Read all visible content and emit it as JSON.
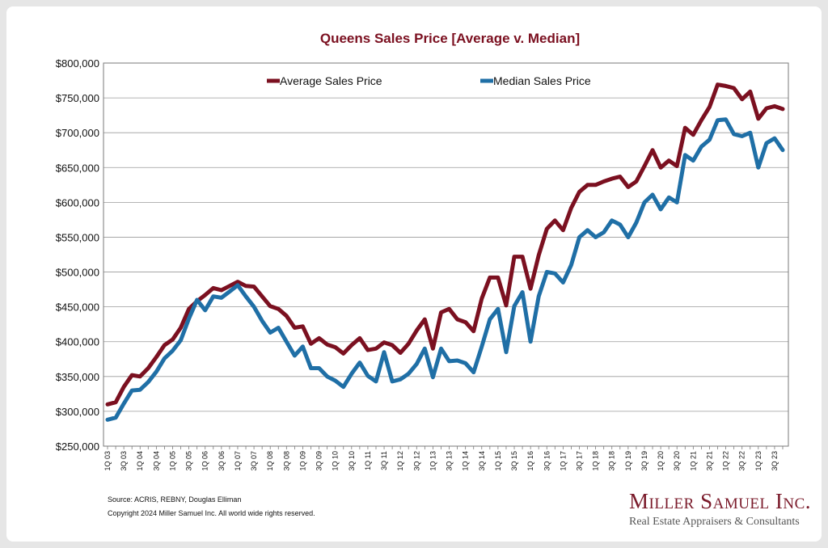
{
  "chart_data": {
    "type": "line",
    "title": "Queens Sales Price [Average v. Median]",
    "xlabel": "",
    "ylabel": "",
    "ylim": [
      250000,
      800000
    ],
    "ytick_labels": [
      "$250,000",
      "$300,000",
      "$350,000",
      "$400,000",
      "$450,000",
      "$500,000",
      "$550,000",
      "$600,000",
      "$650,000",
      "$700,000",
      "$750,000",
      "$800,000"
    ],
    "x_tick_labels": [
      "1Q 03",
      "3Q 03",
      "1Q 04",
      "3Q 04",
      "1Q 05",
      "3Q 05",
      "1Q 06",
      "3Q 06",
      "1Q 07",
      "3Q 07",
      "1Q 08",
      "3Q 08",
      "1Q 09",
      "3Q 09",
      "1Q 10",
      "3Q 10",
      "1Q 11",
      "3Q 11",
      "1Q 12",
      "3Q 12",
      "1Q 13",
      "3Q 13",
      "1Q 14",
      "3Q 14",
      "1Q 15",
      "3Q 15",
      "1Q 16",
      "3Q 16",
      "1Q 17",
      "3Q 17",
      "1Q 18",
      "3Q 18",
      "1Q 19",
      "3Q 19",
      "1Q 20",
      "3Q 20",
      "1Q 21",
      "3Q 21",
      "1Q 22",
      "3Q 22",
      "1Q 23",
      "3Q 23"
    ],
    "legend_position": "top",
    "grid": true,
    "series": [
      {
        "name": "Average Sales Price",
        "color": "#7b1020",
        "values": [
          310000,
          313000,
          335000,
          352000,
          350000,
          362000,
          378000,
          395000,
          403000,
          420000,
          447000,
          458000,
          467000,
          477000,
          474000,
          480000,
          486000,
          480000,
          479000,
          465000,
          451000,
          447000,
          437000,
          420000,
          422000,
          397000,
          405000,
          396000,
          392000,
          383000,
          395000,
          405000,
          388000,
          390000,
          399000,
          395000,
          384000,
          397000,
          416000,
          432000,
          390000,
          442000,
          447000,
          432000,
          428000,
          415000,
          462000,
          492000,
          492000,
          452000,
          522000,
          522000,
          476000,
          524000,
          562000,
          574000,
          560000,
          592000,
          615000,
          625000,
          625000,
          630000,
          634000,
          637000,
          622000,
          630000,
          652000,
          675000,
          650000,
          660000,
          652000,
          707000,
          697000,
          718000,
          737000,
          769000,
          767000,
          764000,
          748000,
          759000,
          720000,
          735000,
          738000,
          734000
        ]
      },
      {
        "name": "Median Sales Price",
        "color": "#1f6fa6",
        "values": [
          288000,
          291000,
          311000,
          330000,
          331000,
          342000,
          357000,
          376000,
          387000,
          402000,
          433000,
          460000,
          445000,
          465000,
          463000,
          472000,
          481000,
          465000,
          450000,
          430000,
          413000,
          420000,
          400000,
          380000,
          393000,
          362000,
          362000,
          350000,
          344000,
          335000,
          354000,
          370000,
          351000,
          343000,
          385000,
          343000,
          346000,
          354000,
          368000,
          390000,
          349000,
          390000,
          372000,
          373000,
          369000,
          356000,
          393000,
          432000,
          447000,
          385000,
          451000,
          471000,
          400000,
          465000,
          500000,
          498000,
          485000,
          510000,
          550000,
          560000,
          550000,
          557000,
          574000,
          568000,
          550000,
          571000,
          600000,
          611000,
          590000,
          607000,
          600000,
          668000,
          660000,
          680000,
          690000,
          718000,
          719000,
          698000,
          695000,
          700000,
          650000,
          685000,
          692000,
          675000
        ]
      }
    ]
  },
  "footer": {
    "source": "Source: ACRIS, REBNY, Douglas Elliman",
    "copyright": "Copyright 2024 Miller Samuel Inc.  All world wide rights reserved."
  },
  "brand": {
    "name": "Miller Samuel Inc.",
    "tagline": "Real Estate Appraisers & Consultants"
  }
}
